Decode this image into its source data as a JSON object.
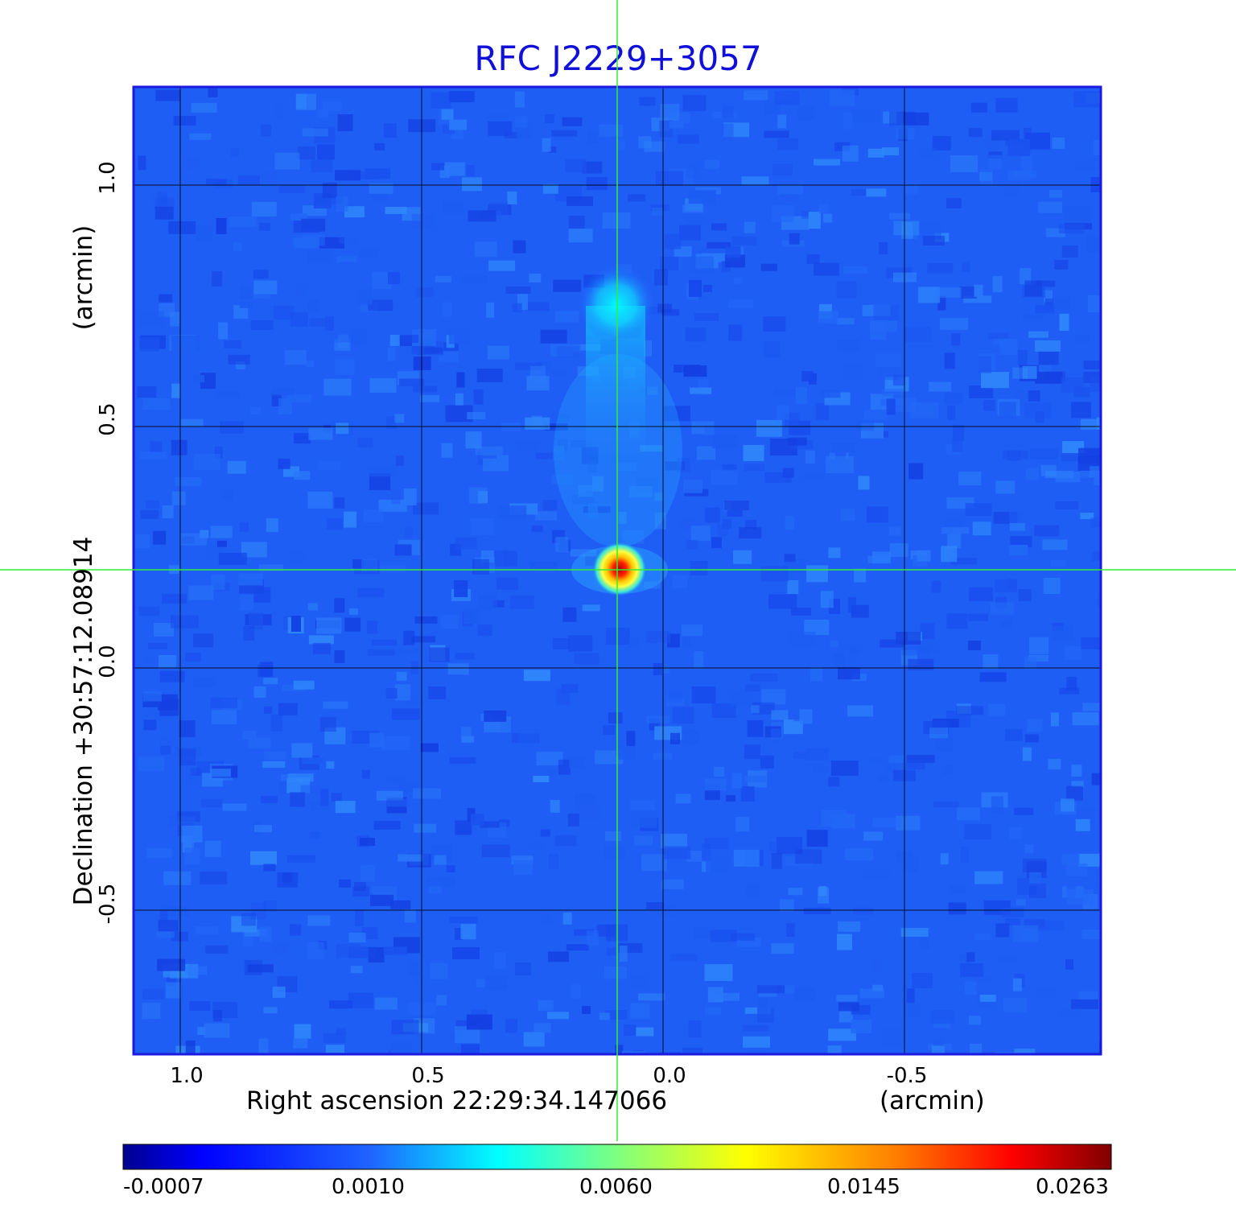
{
  "title": "RFC J2229+3057",
  "x_axis": {
    "label": "Right ascension  22:29:34.147066",
    "unit": "(arcmin)",
    "ticks": [
      "1.0",
      "0.5",
      "0.0",
      "-0.5"
    ]
  },
  "y_axis": {
    "label": "Declination  +30:57:12.08914",
    "unit": "(arcmin)",
    "ticks": [
      "1.0",
      "0.5",
      "0.0",
      "-0.5"
    ]
  },
  "colorbar": {
    "ticks": [
      "-0.0007",
      "0.0010",
      "0.0060",
      "0.0145",
      "0.0263"
    ],
    "colormap": "jet"
  },
  "colors": {
    "title": "#1010d8",
    "frame": "#1a1ae0",
    "crosshair": "#33ee33",
    "grid": "#000000"
  }
}
